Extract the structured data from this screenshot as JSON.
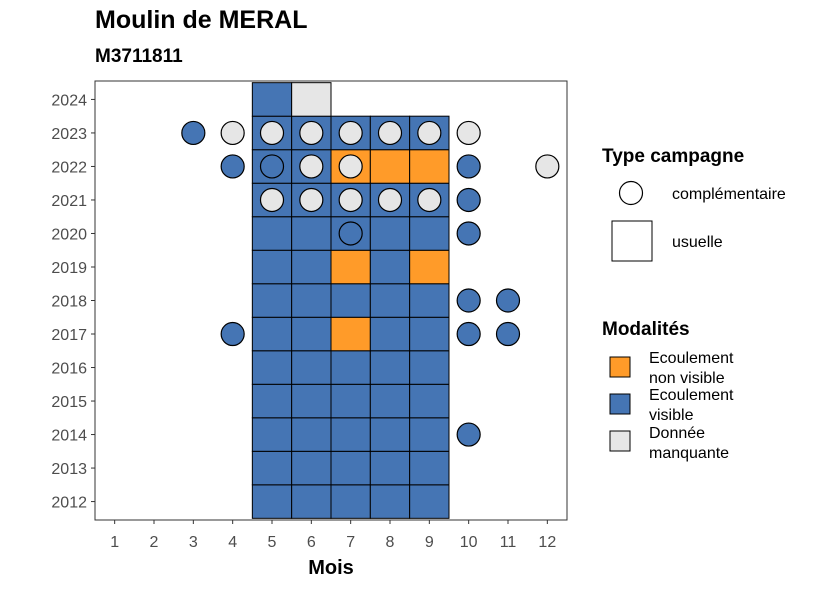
{
  "title": "Moulin de MERAL",
  "subtitle": "M3711811",
  "colors": {
    "ecoulement_non_visible": "#FF9B29",
    "ecoulement_visible": "#4575B4",
    "donnee_manquante": "#E6E6E6"
  },
  "chart_data": {
    "type": "heatmap",
    "xlabel": "Mois",
    "ylabel": "",
    "x_ticks": [
      1,
      2,
      3,
      4,
      5,
      6,
      7,
      8,
      9,
      10,
      11,
      12
    ],
    "y_ticks": [
      2012,
      2013,
      2014,
      2015,
      2016,
      2017,
      2018,
      2019,
      2020,
      2021,
      2022,
      2023,
      2024
    ],
    "xlim": [
      0.5,
      12.5
    ],
    "ylim": [
      2011.45,
      2024.55
    ],
    "grid": false,
    "legends": [
      {
        "title": "Type campagne",
        "placement": "right",
        "items": [
          {
            "label": "complémentaire",
            "shape": "circle"
          },
          {
            "label": "usuelle",
            "shape": "square"
          }
        ]
      },
      {
        "title": "Modalités",
        "placement": "right",
        "items": [
          {
            "label": "Ecoulement non visible",
            "lines": [
              "Ecoulement",
              "non visible"
            ],
            "key": "ecoulement_non_visible"
          },
          {
            "label": "Ecoulement visible",
            "lines": [
              "Ecoulement",
              "visible"
            ],
            "key": "ecoulement_visible"
          },
          {
            "label": "Donnée manquante",
            "lines": [
              "Donnée",
              "manquante"
            ],
            "key": "donnee_manquante"
          }
        ]
      }
    ],
    "usuelle": [
      {
        "year": 2012,
        "month": 5,
        "m": "ecoulement_visible"
      },
      {
        "year": 2012,
        "month": 6,
        "m": "ecoulement_visible"
      },
      {
        "year": 2012,
        "month": 7,
        "m": "ecoulement_visible"
      },
      {
        "year": 2012,
        "month": 8,
        "m": "ecoulement_visible"
      },
      {
        "year": 2012,
        "month": 9,
        "m": "ecoulement_visible"
      },
      {
        "year": 2013,
        "month": 5,
        "m": "ecoulement_visible"
      },
      {
        "year": 2013,
        "month": 6,
        "m": "ecoulement_visible"
      },
      {
        "year": 2013,
        "month": 7,
        "m": "ecoulement_visible"
      },
      {
        "year": 2013,
        "month": 8,
        "m": "ecoulement_visible"
      },
      {
        "year": 2013,
        "month": 9,
        "m": "ecoulement_visible"
      },
      {
        "year": 2014,
        "month": 5,
        "m": "ecoulement_visible"
      },
      {
        "year": 2014,
        "month": 6,
        "m": "ecoulement_visible"
      },
      {
        "year": 2014,
        "month": 7,
        "m": "ecoulement_visible"
      },
      {
        "year": 2014,
        "month": 8,
        "m": "ecoulement_visible"
      },
      {
        "year": 2014,
        "month": 9,
        "m": "ecoulement_visible"
      },
      {
        "year": 2015,
        "month": 5,
        "m": "ecoulement_visible"
      },
      {
        "year": 2015,
        "month": 6,
        "m": "ecoulement_visible"
      },
      {
        "year": 2015,
        "month": 7,
        "m": "ecoulement_visible"
      },
      {
        "year": 2015,
        "month": 8,
        "m": "ecoulement_visible"
      },
      {
        "year": 2015,
        "month": 9,
        "m": "ecoulement_visible"
      },
      {
        "year": 2016,
        "month": 5,
        "m": "ecoulement_visible"
      },
      {
        "year": 2016,
        "month": 6,
        "m": "ecoulement_visible"
      },
      {
        "year": 2016,
        "month": 7,
        "m": "ecoulement_visible"
      },
      {
        "year": 2016,
        "month": 8,
        "m": "ecoulement_visible"
      },
      {
        "year": 2016,
        "month": 9,
        "m": "ecoulement_visible"
      },
      {
        "year": 2017,
        "month": 5,
        "m": "ecoulement_visible"
      },
      {
        "year": 2017,
        "month": 6,
        "m": "ecoulement_visible"
      },
      {
        "year": 2017,
        "month": 7,
        "m": "ecoulement_non_visible"
      },
      {
        "year": 2017,
        "month": 8,
        "m": "ecoulement_visible"
      },
      {
        "year": 2017,
        "month": 9,
        "m": "ecoulement_visible"
      },
      {
        "year": 2018,
        "month": 5,
        "m": "ecoulement_visible"
      },
      {
        "year": 2018,
        "month": 6,
        "m": "ecoulement_visible"
      },
      {
        "year": 2018,
        "month": 7,
        "m": "ecoulement_visible"
      },
      {
        "year": 2018,
        "month": 8,
        "m": "ecoulement_visible"
      },
      {
        "year": 2018,
        "month": 9,
        "m": "ecoulement_visible"
      },
      {
        "year": 2019,
        "month": 5,
        "m": "ecoulement_visible"
      },
      {
        "year": 2019,
        "month": 6,
        "m": "ecoulement_visible"
      },
      {
        "year": 2019,
        "month": 7,
        "m": "ecoulement_non_visible"
      },
      {
        "year": 2019,
        "month": 8,
        "m": "ecoulement_visible"
      },
      {
        "year": 2019,
        "month": 9,
        "m": "ecoulement_non_visible"
      },
      {
        "year": 2020,
        "month": 5,
        "m": "ecoulement_visible"
      },
      {
        "year": 2020,
        "month": 6,
        "m": "ecoulement_visible"
      },
      {
        "year": 2020,
        "month": 7,
        "m": "ecoulement_visible"
      },
      {
        "year": 2020,
        "month": 8,
        "m": "ecoulement_visible"
      },
      {
        "year": 2020,
        "month": 9,
        "m": "ecoulement_visible"
      },
      {
        "year": 2021,
        "month": 5,
        "m": "ecoulement_visible"
      },
      {
        "year": 2021,
        "month": 6,
        "m": "ecoulement_visible"
      },
      {
        "year": 2021,
        "month": 7,
        "m": "ecoulement_visible"
      },
      {
        "year": 2021,
        "month": 8,
        "m": "ecoulement_visible"
      },
      {
        "year": 2021,
        "month": 9,
        "m": "ecoulement_visible"
      },
      {
        "year": 2022,
        "month": 5,
        "m": "ecoulement_visible"
      },
      {
        "year": 2022,
        "month": 6,
        "m": "ecoulement_visible"
      },
      {
        "year": 2022,
        "month": 7,
        "m": "ecoulement_non_visible"
      },
      {
        "year": 2022,
        "month": 8,
        "m": "ecoulement_non_visible"
      },
      {
        "year": 2022,
        "month": 9,
        "m": "ecoulement_non_visible"
      },
      {
        "year": 2023,
        "month": 5,
        "m": "ecoulement_visible"
      },
      {
        "year": 2023,
        "month": 6,
        "m": "ecoulement_visible"
      },
      {
        "year": 2023,
        "month": 7,
        "m": "ecoulement_visible"
      },
      {
        "year": 2023,
        "month": 8,
        "m": "ecoulement_visible"
      },
      {
        "year": 2023,
        "month": 9,
        "m": "ecoulement_visible"
      },
      {
        "year": 2024,
        "month": 5,
        "m": "ecoulement_visible"
      },
      {
        "year": 2024,
        "month": 6,
        "m": "donnee_manquante"
      }
    ],
    "complementaire": [
      {
        "year": 2014,
        "month": 10,
        "m": "ecoulement_visible"
      },
      {
        "year": 2017,
        "month": 4,
        "m": "ecoulement_visible"
      },
      {
        "year": 2017,
        "month": 10,
        "m": "ecoulement_visible"
      },
      {
        "year": 2017,
        "month": 11,
        "m": "ecoulement_visible"
      },
      {
        "year": 2018,
        "month": 10,
        "m": "ecoulement_visible"
      },
      {
        "year": 2018,
        "month": 11,
        "m": "ecoulement_visible"
      },
      {
        "year": 2020,
        "month": 7,
        "m": "ecoulement_visible"
      },
      {
        "year": 2020,
        "month": 10,
        "m": "ecoulement_visible"
      },
      {
        "year": 2021,
        "month": 5,
        "m": "donnee_manquante"
      },
      {
        "year": 2021,
        "month": 6,
        "m": "donnee_manquante"
      },
      {
        "year": 2021,
        "month": 7,
        "m": "donnee_manquante"
      },
      {
        "year": 2021,
        "month": 8,
        "m": "donnee_manquante"
      },
      {
        "year": 2021,
        "month": 9,
        "m": "donnee_manquante"
      },
      {
        "year": 2021,
        "month": 10,
        "m": "ecoulement_visible"
      },
      {
        "year": 2022,
        "month": 4,
        "m": "ecoulement_visible"
      },
      {
        "year": 2022,
        "month": 5,
        "m": "ecoulement_visible"
      },
      {
        "year": 2022,
        "month": 6,
        "m": "donnee_manquante"
      },
      {
        "year": 2022,
        "month": 7,
        "m": "donnee_manquante"
      },
      {
        "year": 2022,
        "month": 10,
        "m": "ecoulement_visible"
      },
      {
        "year": 2022,
        "month": 12,
        "m": "donnee_manquante"
      },
      {
        "year": 2023,
        "month": 3,
        "m": "ecoulement_visible"
      },
      {
        "year": 2023,
        "month": 4,
        "m": "donnee_manquante"
      },
      {
        "year": 2023,
        "month": 5,
        "m": "donnee_manquante"
      },
      {
        "year": 2023,
        "month": 6,
        "m": "donnee_manquante"
      },
      {
        "year": 2023,
        "month": 7,
        "m": "donnee_manquante"
      },
      {
        "year": 2023,
        "month": 8,
        "m": "donnee_manquante"
      },
      {
        "year": 2023,
        "month": 9,
        "m": "donnee_manquante"
      },
      {
        "year": 2023,
        "month": 10,
        "m": "donnee_manquante"
      }
    ]
  }
}
